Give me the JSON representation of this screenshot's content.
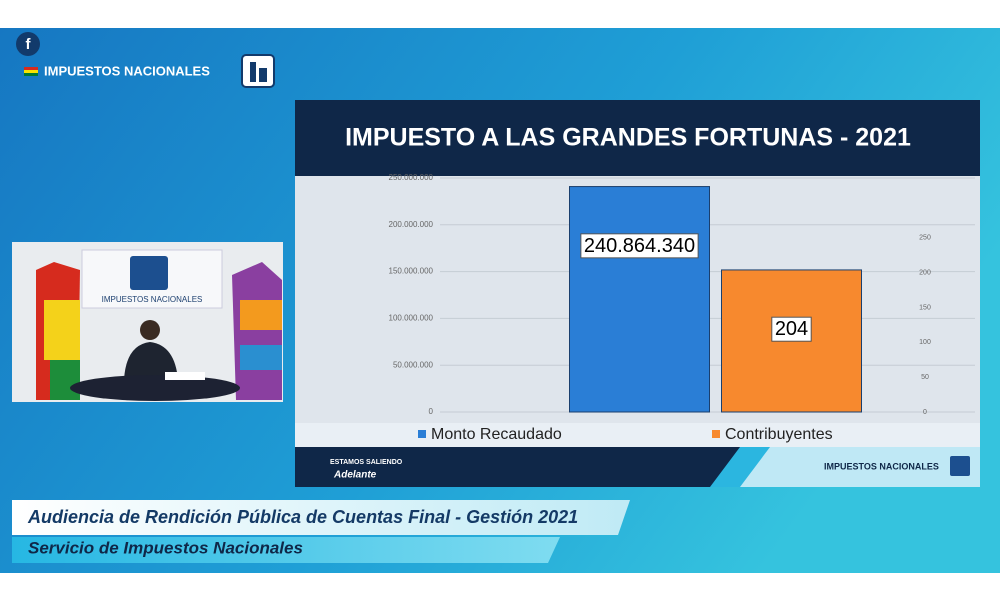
{
  "header": {
    "brand": "IMPUESTOS NACIONALES",
    "social": "f"
  },
  "video": {
    "sign": "IMPUESTOS NACIONALES"
  },
  "chart_data": {
    "type": "bar",
    "title": "IMPUESTO A LAS GRANDES FORTUNAS - 2021",
    "categories": [
      null
    ],
    "series": [
      {
        "name": "Monto Recaudado",
        "color": "#2a7ed6",
        "values": [
          240864340
        ],
        "value_labels": [
          "240.864.340"
        ]
      },
      {
        "name": "Contribuyentes",
        "color": "#f7892e",
        "values": [
          204
        ],
        "value_labels": [
          "204"
        ],
        "axis": "y2"
      }
    ],
    "ylim": [
      0,
      250000000
    ],
    "yticks": [
      0,
      {
        "value": 50000000,
        "label": "50.000.000"
      },
      {
        "value": 100000000,
        "label": "100.000.000"
      },
      {
        "value": 150000000,
        "label": "150.000.000"
      },
      {
        "value": 200000000,
        "label": "200.000.000"
      },
      {
        "value": 250000000,
        "label": "250.000.000"
      }
    ],
    "y2lim": [
      0,
      336
    ],
    "y2ticks": [
      0,
      50,
      100,
      150,
      200,
      250
    ],
    "grid": true
  },
  "slide_footer": {
    "slogan_line1": "ESTAMOS SALIENDO",
    "slogan_line2": "Adelante",
    "brand": "IMPUESTOS NACIONALES"
  },
  "lower_third": {
    "line1": "Audiencia de Rendición Pública de Cuentas Final - Gestión 2021",
    "line2": "Servicio de Impuestos Nacionales"
  }
}
